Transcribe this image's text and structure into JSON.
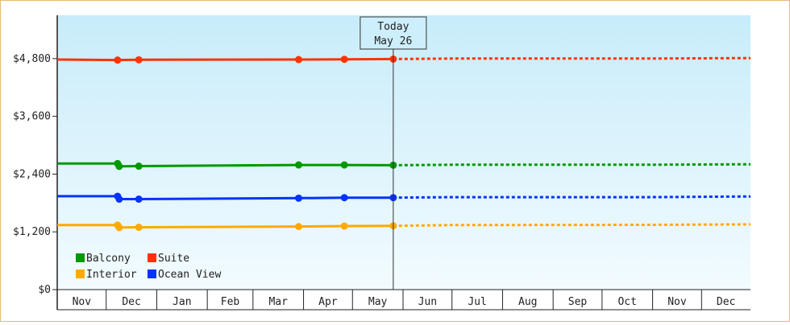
{
  "chart_data": {
    "type": "line",
    "today_label": [
      "Today",
      "May 26"
    ],
    "today_date": "2025-05-26",
    "x_start": "2024-11-01",
    "x_end": "2025-12-31",
    "month_ticks": [
      {
        "label": "Nov",
        "date": "2024-11-01"
      },
      {
        "label": "Dec",
        "date": "2024-12-01"
      },
      {
        "label": "Jan",
        "date": "2025-01-01"
      },
      {
        "label": "Feb",
        "date": "2025-02-01"
      },
      {
        "label": "Mar",
        "date": "2025-03-01"
      },
      {
        "label": "Apr",
        "date": "2025-04-01"
      },
      {
        "label": "May",
        "date": "2025-05-01"
      },
      {
        "label": "Jun",
        "date": "2025-06-01"
      },
      {
        "label": "Jul",
        "date": "2025-07-01"
      },
      {
        "label": "Aug",
        "date": "2025-08-01"
      },
      {
        "label": "Sep",
        "date": "2025-09-01"
      },
      {
        "label": "Oct",
        "date": "2025-10-01"
      },
      {
        "label": "Nov",
        "date": "2025-11-01"
      },
      {
        "label": "Dec",
        "date": "2025-12-01"
      }
    ],
    "y_ticks": [
      {
        "label": "$0",
        "value": 0
      },
      {
        "label": "$1,200",
        "value": 1200
      },
      {
        "label": "$2,400",
        "value": 2400
      },
      {
        "label": "$3,600",
        "value": 3600
      },
      {
        "label": "$4,800",
        "value": 4800
      }
    ],
    "ylim": [
      0,
      5700
    ],
    "grid": false,
    "legend_position": "bottom-left",
    "series": [
      {
        "name": "Suite",
        "color": "#ff3300",
        "points": [
          {
            "x": "2024-11-01",
            "y": 4780
          },
          {
            "x": "2024-12-08",
            "y": 4770
          },
          {
            "x": "2024-12-21",
            "y": 4775
          },
          {
            "x": "2025-03-29",
            "y": 4780
          },
          {
            "x": "2025-04-26",
            "y": 4785
          },
          {
            "x": "2025-05-26",
            "y": 4790
          }
        ],
        "forecast": [
          {
            "x": "2025-05-26",
            "y": 4790
          },
          {
            "x": "2025-07-01",
            "y": 4800
          },
          {
            "x": "2025-10-28",
            "y": 4800
          },
          {
            "x": "2025-12-31",
            "y": 4810
          }
        ]
      },
      {
        "name": "Balcony",
        "color": "#009900",
        "points": [
          {
            "x": "2024-11-01",
            "y": 2620
          },
          {
            "x": "2024-12-08",
            "y": 2620
          },
          {
            "x": "2024-12-09",
            "y": 2560
          },
          {
            "x": "2024-12-21",
            "y": 2565
          },
          {
            "x": "2025-03-29",
            "y": 2590
          },
          {
            "x": "2025-04-26",
            "y": 2590
          },
          {
            "x": "2025-05-26",
            "y": 2585
          }
        ],
        "forecast": [
          {
            "x": "2025-05-26",
            "y": 2585
          },
          {
            "x": "2025-07-01",
            "y": 2595
          },
          {
            "x": "2025-10-28",
            "y": 2595
          },
          {
            "x": "2025-12-31",
            "y": 2605
          }
        ]
      },
      {
        "name": "Ocean View",
        "color": "#0033ff",
        "points": [
          {
            "x": "2024-11-01",
            "y": 1940
          },
          {
            "x": "2024-12-08",
            "y": 1940
          },
          {
            "x": "2024-12-09",
            "y": 1880
          },
          {
            "x": "2024-12-21",
            "y": 1880
          },
          {
            "x": "2025-03-29",
            "y": 1900
          },
          {
            "x": "2025-04-26",
            "y": 1910
          },
          {
            "x": "2025-05-26",
            "y": 1910
          }
        ],
        "forecast": [
          {
            "x": "2025-05-26",
            "y": 1910
          },
          {
            "x": "2025-07-01",
            "y": 1920
          },
          {
            "x": "2025-10-28",
            "y": 1920
          },
          {
            "x": "2025-12-31",
            "y": 1935
          }
        ]
      },
      {
        "name": "Interior",
        "color": "#ffaa00",
        "points": [
          {
            "x": "2024-11-01",
            "y": 1340
          },
          {
            "x": "2024-12-08",
            "y": 1340
          },
          {
            "x": "2024-12-09",
            "y": 1290
          },
          {
            "x": "2024-12-21",
            "y": 1295
          },
          {
            "x": "2025-03-29",
            "y": 1310
          },
          {
            "x": "2025-04-26",
            "y": 1320
          },
          {
            "x": "2025-05-26",
            "y": 1325
          }
        ],
        "forecast": [
          {
            "x": "2025-05-26",
            "y": 1325
          },
          {
            "x": "2025-07-01",
            "y": 1340
          },
          {
            "x": "2025-10-28",
            "y": 1345
          },
          {
            "x": "2025-12-31",
            "y": 1355
          }
        ]
      }
    ],
    "legend": [
      {
        "name": "Balcony",
        "color": "#009900"
      },
      {
        "name": "Suite",
        "color": "#ff3300"
      },
      {
        "name": "Interior",
        "color": "#ffaa00"
      },
      {
        "name": "Ocean View",
        "color": "#0033ff"
      }
    ]
  }
}
